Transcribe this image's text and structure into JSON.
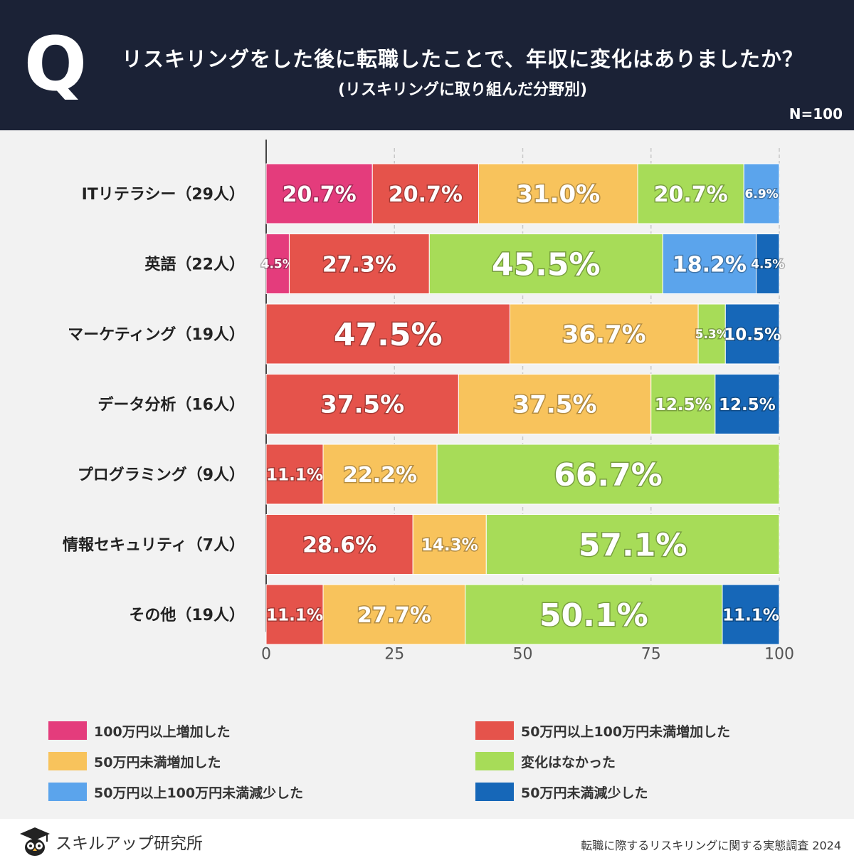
{
  "header": {
    "q_letter": "Q",
    "title": "リスキリングをした後に転職したことで、年収に変化はありましたか？",
    "subtitle": "(リスキリングに取り組んだ分野別)",
    "n": "N=100"
  },
  "chart_data": {
    "type": "bar",
    "orientation": "horizontal",
    "stacked": true,
    "xlim": [
      0,
      100
    ],
    "xticks": [
      0,
      25,
      50,
      75,
      100
    ],
    "categories": [
      "ITリテラシー（29人）",
      "英語（22人）",
      "マーケティング（19人）",
      "データ分析（16人）",
      "プログラミング（9人）",
      "情報セキュリティ（7人）",
      "その他（19人）"
    ],
    "series": [
      {
        "name": "100万円以上増加した",
        "color": "#e43c7c",
        "values": [
          20.7,
          4.5,
          0,
          0,
          0,
          0,
          0
        ]
      },
      {
        "name": "50万円以上100万円未満増加した",
        "color": "#e5534b",
        "values": [
          20.7,
          27.3,
          47.5,
          37.5,
          11.1,
          28.6,
          11.1
        ]
      },
      {
        "name": "50万円未満増加した",
        "color": "#f8c35c",
        "values": [
          31.0,
          0,
          36.7,
          37.5,
          22.2,
          14.3,
          27.7
        ]
      },
      {
        "name": "変化はなかった",
        "color": "#a7dc58",
        "values": [
          20.7,
          45.5,
          5.3,
          12.5,
          66.7,
          57.1,
          50.1
        ]
      },
      {
        "name": "50万円以上100万円未満減少した",
        "color": "#5ba4ec",
        "values": [
          6.9,
          18.2,
          0,
          0,
          0,
          0,
          0
        ]
      },
      {
        "name": "50万円未満減少した",
        "color": "#1667b8",
        "values": [
          0,
          4.5,
          10.5,
          12.5,
          0,
          0,
          11.1
        ]
      }
    ]
  },
  "footer": {
    "brand": "スキルアップ研究所",
    "source": "転職に際するリスキリングに関する実態調査 2024"
  }
}
